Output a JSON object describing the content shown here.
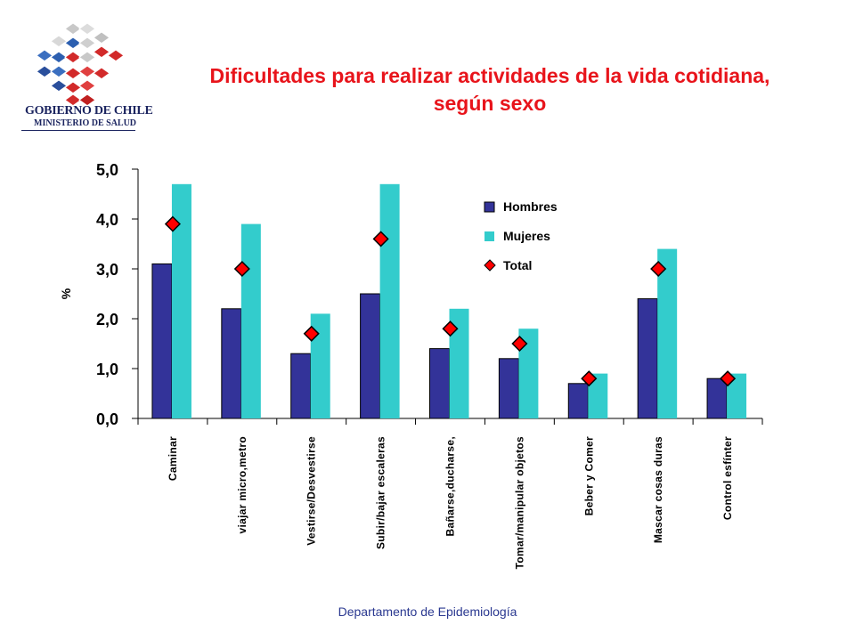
{
  "logo": {
    "line1": "GOBIERNO DE CHILE",
    "line2": "MINISTERIO DE SALUD"
  },
  "footer": "Departamento de Epidemiología",
  "colors": {
    "hombres": "#333399",
    "mujeres": "#33cccc",
    "total": "#ff0000",
    "title": "#e8141b"
  },
  "chart_data": {
    "type": "bar",
    "title": "Dificultades para realizar actividades de la vida cotidiana, según sexo",
    "xlabel": "",
    "ylabel": "%",
    "ylim": [
      0,
      5
    ],
    "yticks": [
      "0,0",
      "1,0",
      "2,0",
      "3,0",
      "4,0",
      "5,0"
    ],
    "grid": false,
    "legend_position": "top-right",
    "categories": [
      "Caminar",
      "viajar micro,metro",
      "Vestirse/Desvestirse",
      "Subir/bajar escaleras",
      "Bañarse,ducharse,",
      "Tomar/manipular objetos",
      "Beber y Comer",
      "Mascar cosas duras",
      "Control esfínter"
    ],
    "series": [
      {
        "name": "Hombres",
        "kind": "bar",
        "values": [
          3.1,
          2.2,
          1.3,
          2.5,
          1.4,
          1.2,
          0.7,
          2.4,
          0.8
        ]
      },
      {
        "name": "Mujeres",
        "kind": "bar",
        "values": [
          4.7,
          3.9,
          2.1,
          4.7,
          2.2,
          1.8,
          0.9,
          3.4,
          0.9
        ]
      },
      {
        "name": "Total",
        "kind": "marker",
        "values": [
          3.9,
          3.0,
          1.7,
          3.6,
          1.8,
          1.5,
          0.8,
          3.0,
          0.8
        ]
      }
    ]
  }
}
